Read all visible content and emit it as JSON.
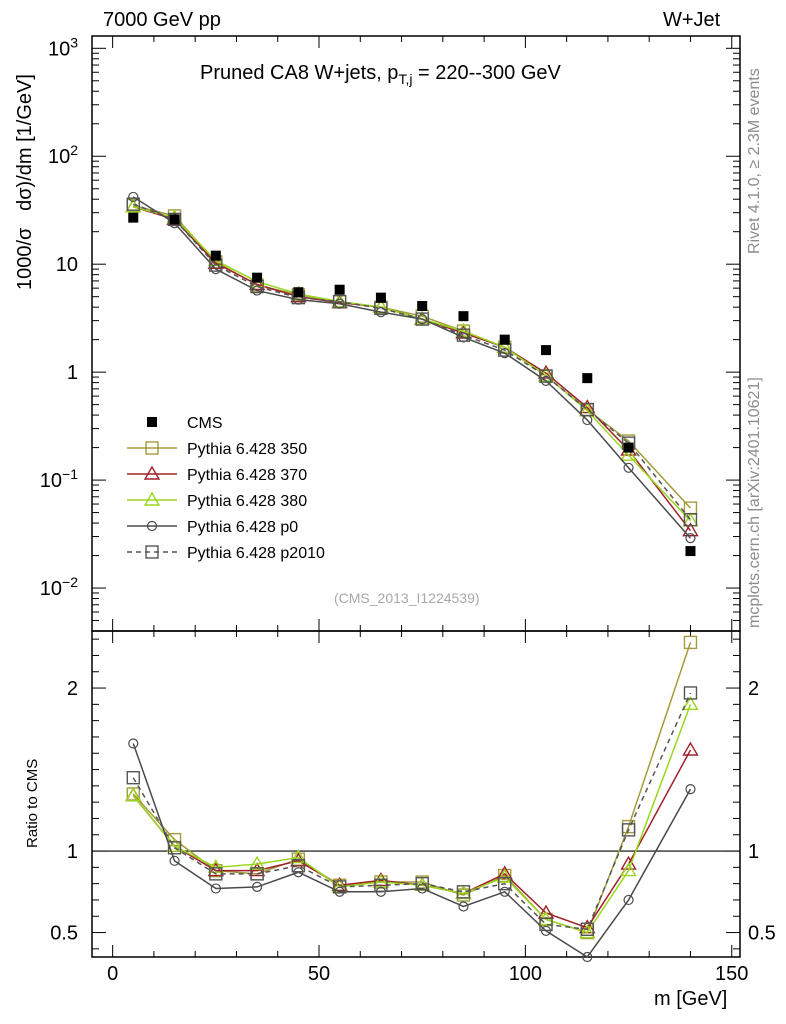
{
  "header": {
    "energy": "7000 GeV pp",
    "process": "W+Jet",
    "title_main": "Pruned CA8 W+jets, p",
    "title_sub": "T,j",
    "title_range": " = 220--300 GeV",
    "analysis_id": "(CMS_2013_I1224539)",
    "rivet_label": "Rivet 4.1.0, ≥ 2.3M events",
    "mcplots_label": "mcplots.cern.ch [arXiv:2401.10621]"
  },
  "chart_data": {
    "type": "line",
    "title": "Pruned CA8 W+jets, pT,j = 220--300 GeV",
    "xlabel": "m [GeV]",
    "ylabel_parts": [
      "1000/σ",
      "dσ)/dm [1/GeV]"
    ],
    "ratio_ylabel": "Ratio to CMS",
    "xlim": [
      -5,
      152
    ],
    "ylim": [
      0.004,
      1300
    ],
    "ratio_ylim": [
      0.35,
      2.35
    ],
    "log_y": true,
    "x_ticks": [
      0,
      50,
      100,
      150
    ],
    "y_ticks": [
      {
        "value": 0.01,
        "base": "10",
        "exp": "−2"
      },
      {
        "value": 0.1,
        "base": "10",
        "exp": "−1"
      },
      {
        "value": 1,
        "base": "1",
        "exp": ""
      },
      {
        "value": 10,
        "base": "10",
        "exp": ""
      },
      {
        "value": 100,
        "base": "10",
        "exp": "2"
      },
      {
        "value": 1000,
        "base": "10",
        "exp": "3"
      }
    ],
    "ratio_ticks": [
      {
        "value": 0.5,
        "label": "0.5"
      },
      {
        "value": 1,
        "label": "1"
      },
      {
        "value": 2,
        "label": "2"
      }
    ],
    "x": [
      5,
      15,
      25,
      35,
      45,
      55,
      65,
      75,
      85,
      95,
      105,
      115,
      125,
      140
    ],
    "data": {
      "name": "CMS",
      "color": "#000000",
      "values": [
        27,
        26,
        12,
        7.5,
        5.5,
        5.8,
        4.9,
        4.1,
        3.3,
        2.0,
        1.6,
        0.88,
        0.2,
        0.022
      ]
    },
    "series": [
      {
        "name": "Pythia 6.428 350",
        "color": "#a39c3c",
        "marker": "square-open",
        "dash": "",
        "values": [
          35,
          28,
          10.5,
          6.4,
          5.2,
          4.5,
          4.0,
          3.3,
          2.4,
          1.7,
          0.92,
          0.45,
          0.23,
          0.055
        ],
        "ratio": [
          1.35,
          1.07,
          0.88,
          0.86,
          0.95,
          0.79,
          0.81,
          0.81,
          0.73,
          0.85,
          0.58,
          0.5,
          1.15,
          2.28
        ]
      },
      {
        "name": "Pythia 6.428 370",
        "color": "#a0202a",
        "marker": "triangle-open",
        "dash": "",
        "values": [
          34,
          26,
          10.2,
          6.5,
          5.0,
          4.4,
          4.0,
          3.1,
          2.3,
          1.7,
          0.98,
          0.47,
          0.19,
          0.034
        ],
        "ratio": [
          1.34,
          1.03,
          0.88,
          0.88,
          0.94,
          0.79,
          0.82,
          0.79,
          0.74,
          0.86,
          0.62,
          0.53,
          0.92,
          1.62
        ]
      },
      {
        "name": "Pythia 6.428 380",
        "color": "#9ad61e",
        "marker": "triangle-open",
        "dash": "",
        "values": [
          34,
          27,
          10.8,
          6.9,
          5.3,
          4.5,
          4.0,
          3.1,
          2.4,
          1.7,
          0.93,
          0.44,
          0.17,
          0.042
        ],
        "ratio": [
          1.34,
          1.03,
          0.9,
          0.92,
          0.96,
          0.78,
          0.81,
          0.79,
          0.74,
          0.84,
          0.58,
          0.5,
          0.88,
          1.9
        ]
      },
      {
        "name": "Pythia 6.428 p0",
        "color": "#4a4a4a",
        "marker": "circle-open",
        "dash": "",
        "values": [
          42,
          24,
          9.0,
          5.7,
          4.7,
          4.3,
          3.6,
          3.1,
          2.1,
          1.5,
          0.83,
          0.36,
          0.13,
          0.029
        ],
        "ratio": [
          1.66,
          0.94,
          0.77,
          0.78,
          0.87,
          0.75,
          0.75,
          0.77,
          0.66,
          0.75,
          0.51,
          0.35,
          0.7,
          1.38
        ]
      },
      {
        "name": "Pythia 6.428 p2010",
        "color": "#555555",
        "marker": "square-open",
        "dash": "5,4",
        "values": [
          36,
          26,
          9.8,
          6.2,
          4.9,
          4.5,
          3.9,
          3.1,
          2.2,
          1.6,
          0.92,
          0.45,
          0.22,
          0.043
        ],
        "ratio": [
          1.45,
          1.02,
          0.86,
          0.86,
          0.91,
          0.78,
          0.79,
          0.8,
          0.75,
          0.8,
          0.55,
          0.52,
          1.13,
          1.97
        ]
      }
    ]
  }
}
